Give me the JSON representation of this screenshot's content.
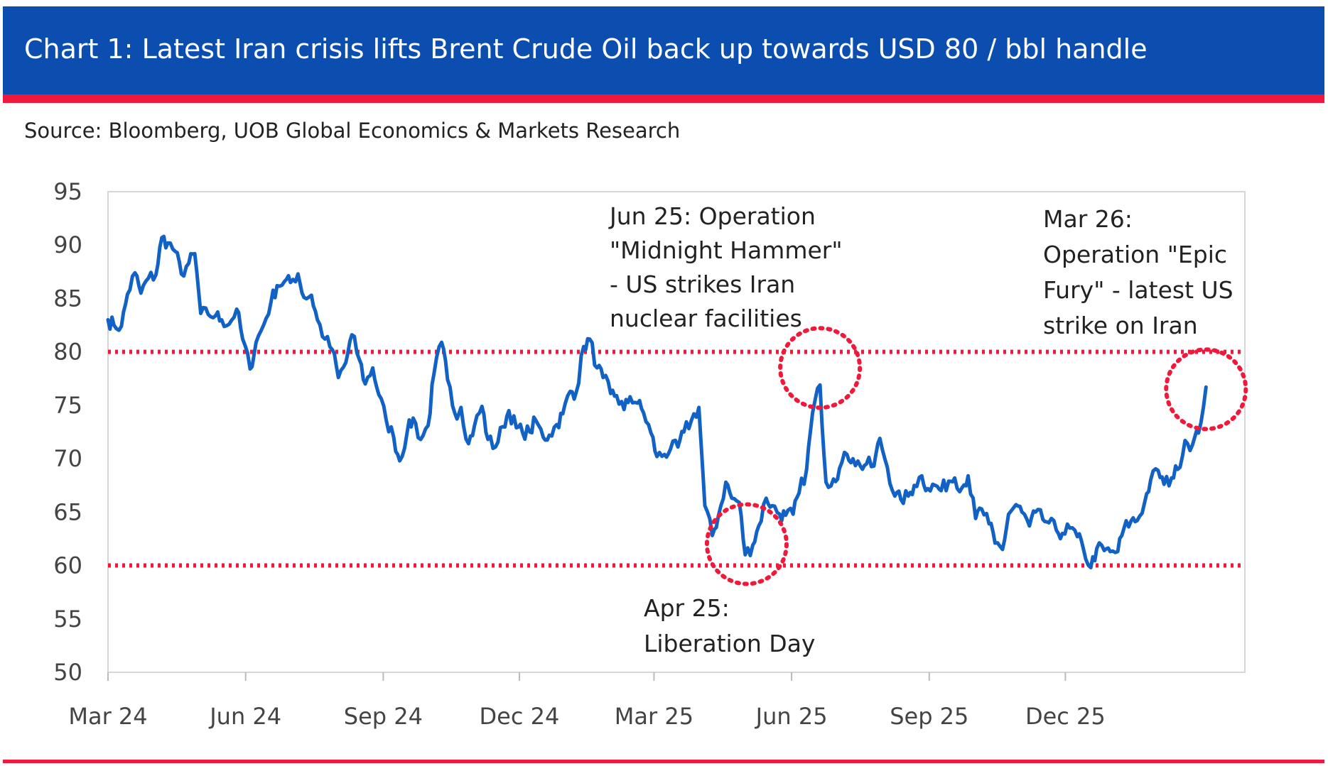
{
  "header": {
    "title": "Chart 1: Latest Iran crisis lifts Brent Crude Oil back up towards USD 80 / bbl handle",
    "source": "Source: Bloomberg, UOB Global Economics & Markets Research"
  },
  "colors": {
    "header_blue": "#0b4eaf",
    "accent_red": "#f0193c",
    "series_line": "#1162c4",
    "reference_lines": "#f0193c"
  },
  "chart_data": {
    "type": "line",
    "title": "Chart 1: Latest Iran crisis lifts Brent Crude Oil back up towards USD 80 / bbl handle",
    "xlabel": "",
    "ylabel": "",
    "ylim": [
      50,
      95
    ],
    "yticks": [
      95,
      90,
      85,
      80,
      75,
      70,
      65,
      60,
      55,
      50
    ],
    "xlim": [
      "2024-03-01",
      "2026-03-31"
    ],
    "xticks": [
      {
        "label": "Mar 24",
        "date": "2024-03-01"
      },
      {
        "label": "Jun 24",
        "date": "2024-06-01"
      },
      {
        "label": "Sep 24",
        "date": "2024-09-01"
      },
      {
        "label": "Dec 24",
        "date": "2024-12-01"
      },
      {
        "label": "Mar 25",
        "date": "2025-03-01"
      },
      {
        "label": "Jun 25",
        "date": "2025-06-01"
      },
      {
        "label": "Sep 25",
        "date": "2025-09-01"
      },
      {
        "label": "Dec 25",
        "date": "2025-12-01"
      }
    ],
    "grid": false,
    "legend": "none",
    "series": [
      {
        "points": [
          [
            "2024-03-01",
            83.0
          ],
          [
            "2024-03-05",
            82.5
          ],
          [
            "2024-03-10",
            82.4
          ],
          [
            "2024-03-14",
            85.4
          ],
          [
            "2024-03-19",
            87.4
          ],
          [
            "2024-03-23",
            85.5
          ],
          [
            "2024-03-28",
            86.9
          ],
          [
            "2024-04-02",
            87.2
          ],
          [
            "2024-04-06",
            90.7
          ],
          [
            "2024-04-10",
            90.2
          ],
          [
            "2024-04-15",
            89.4
          ],
          [
            "2024-04-19",
            87.3
          ],
          [
            "2024-04-24",
            88.3
          ],
          [
            "2024-04-28",
            89.2
          ],
          [
            "2024-05-02",
            83.6
          ],
          [
            "2024-05-07",
            83.5
          ],
          [
            "2024-05-12",
            83.4
          ],
          [
            "2024-05-16",
            83.0
          ],
          [
            "2024-05-21",
            82.6
          ],
          [
            "2024-05-26",
            84.0
          ],
          [
            "2024-05-30",
            81.2
          ],
          [
            "2024-06-04",
            78.4
          ],
          [
            "2024-06-08",
            80.9
          ],
          [
            "2024-06-13",
            82.5
          ],
          [
            "2024-06-18",
            84.7
          ],
          [
            "2024-06-22",
            86.2
          ],
          [
            "2024-06-27",
            86.6
          ],
          [
            "2024-07-01",
            86.5
          ],
          [
            "2024-07-06",
            87.3
          ],
          [
            "2024-07-10",
            85.1
          ],
          [
            "2024-07-15",
            85.3
          ],
          [
            "2024-07-19",
            83.0
          ],
          [
            "2024-07-24",
            81.2
          ],
          [
            "2024-07-29",
            80.2
          ],
          [
            "2024-08-02",
            77.6
          ],
          [
            "2024-08-07",
            79.0
          ],
          [
            "2024-08-11",
            81.6
          ],
          [
            "2024-08-16",
            79.3
          ],
          [
            "2024-08-20",
            77.0
          ],
          [
            "2024-08-25",
            78.5
          ],
          [
            "2024-08-29",
            76.0
          ],
          [
            "2024-09-03",
            73.6
          ],
          [
            "2024-09-08",
            72.0
          ],
          [
            "2024-09-12",
            69.8
          ],
          [
            "2024-09-17",
            72.5
          ],
          [
            "2024-09-21",
            73.8
          ],
          [
            "2024-09-26",
            71.8
          ],
          [
            "2024-10-01",
            73.1
          ],
          [
            "2024-10-05",
            78.0
          ],
          [
            "2024-10-10",
            80.9
          ],
          [
            "2024-10-14",
            77.4
          ],
          [
            "2024-10-19",
            74.2
          ],
          [
            "2024-10-23",
            74.8
          ],
          [
            "2024-10-28",
            71.4
          ],
          [
            "2024-11-01",
            73.1
          ],
          [
            "2024-11-06",
            74.9
          ],
          [
            "2024-11-10",
            71.8
          ],
          [
            "2024-11-15",
            71.1
          ],
          [
            "2024-11-20",
            73.0
          ],
          [
            "2024-11-24",
            74.5
          ],
          [
            "2024-11-29",
            72.9
          ],
          [
            "2024-12-03",
            72.5
          ],
          [
            "2024-12-08",
            72.5
          ],
          [
            "2024-12-12",
            73.6
          ],
          [
            "2024-12-17",
            72.0
          ],
          [
            "2024-12-21",
            72.2
          ],
          [
            "2024-12-26",
            73.2
          ],
          [
            "2024-12-30",
            74.2
          ],
          [
            "2025-01-04",
            76.3
          ],
          [
            "2025-01-08",
            76.2
          ],
          [
            "2025-01-13",
            80.5
          ],
          [
            "2025-01-17",
            81.2
          ],
          [
            "2025-01-22",
            78.5
          ],
          [
            "2025-01-26",
            77.6
          ],
          [
            "2025-01-31",
            76.1
          ],
          [
            "2025-02-04",
            75.9
          ],
          [
            "2025-02-09",
            74.6
          ],
          [
            "2025-02-13",
            75.8
          ],
          [
            "2025-02-18",
            75.2
          ],
          [
            "2025-02-22",
            74.3
          ],
          [
            "2025-02-27",
            72.4
          ],
          [
            "2025-03-03",
            70.2
          ],
          [
            "2025-03-08",
            70.4
          ],
          [
            "2025-03-12",
            70.9
          ],
          [
            "2025-03-17",
            71.1
          ],
          [
            "2025-03-21",
            72.5
          ],
          [
            "2025-03-26",
            73.6
          ],
          [
            "2025-03-31",
            74.8
          ],
          [
            "2025-04-04",
            65.6
          ],
          [
            "2025-04-09",
            62.8
          ],
          [
            "2025-04-13",
            64.6
          ],
          [
            "2025-04-18",
            67.8
          ],
          [
            "2025-04-22",
            66.3
          ],
          [
            "2025-04-27",
            65.9
          ],
          [
            "2025-05-01",
            61.0
          ],
          [
            "2025-05-06",
            61.9
          ],
          [
            "2025-05-10",
            63.7
          ],
          [
            "2025-05-15",
            66.3
          ],
          [
            "2025-05-19",
            65.6
          ],
          [
            "2025-05-24",
            64.8
          ],
          [
            "2025-05-28",
            64.7
          ],
          [
            "2025-06-02",
            64.8
          ],
          [
            "2025-06-06",
            66.8
          ],
          [
            "2025-06-11",
            69.0
          ],
          [
            "2025-06-15",
            74.3
          ],
          [
            "2025-06-20",
            76.9
          ],
          [
            "2025-06-24",
            67.8
          ],
          [
            "2025-06-29",
            68.1
          ],
          [
            "2025-07-03",
            69.1
          ],
          [
            "2025-07-08",
            70.4
          ],
          [
            "2025-07-12",
            70.0
          ],
          [
            "2025-07-17",
            69.3
          ],
          [
            "2025-07-21",
            69.5
          ],
          [
            "2025-07-26",
            69.3
          ],
          [
            "2025-07-30",
            71.9
          ],
          [
            "2025-08-04",
            69.2
          ],
          [
            "2025-08-09",
            66.5
          ],
          [
            "2025-08-13",
            66.2
          ],
          [
            "2025-08-18",
            66.5
          ],
          [
            "2025-08-22",
            67.5
          ],
          [
            "2025-08-27",
            68.4
          ],
          [
            "2025-08-31",
            67.2
          ],
          [
            "2025-09-05",
            67.5
          ],
          [
            "2025-09-09",
            67.0
          ],
          [
            "2025-09-14",
            67.9
          ],
          [
            "2025-09-18",
            68.2
          ],
          [
            "2025-09-23",
            67.3
          ],
          [
            "2025-09-27",
            68.4
          ],
          [
            "2025-10-02",
            64.4
          ],
          [
            "2025-10-06",
            65.3
          ],
          [
            "2025-10-11",
            63.9
          ],
          [
            "2025-10-15",
            62.1
          ],
          [
            "2025-10-20",
            61.5
          ],
          [
            "2025-10-24",
            64.8
          ],
          [
            "2025-10-29",
            65.7
          ],
          [
            "2025-11-02",
            65.0
          ],
          [
            "2025-11-07",
            63.7
          ],
          [
            "2025-11-11",
            65.0
          ],
          [
            "2025-11-16",
            64.3
          ],
          [
            "2025-11-20",
            64.0
          ],
          [
            "2025-11-25",
            63.3
          ],
          [
            "2025-11-29",
            63.0
          ],
          [
            "2025-12-04",
            63.5
          ],
          [
            "2025-12-09",
            62.7
          ],
          [
            "2025-12-13",
            61.6
          ],
          [
            "2025-12-18",
            59.8
          ],
          [
            "2025-12-22",
            61.6
          ],
          [
            "2025-12-27",
            61.4
          ],
          [
            "2025-12-31",
            61.3
          ],
          [
            "2026-01-05",
            61.3
          ],
          [
            "2026-01-09",
            63.4
          ],
          [
            "2026-01-14",
            64.2
          ],
          [
            "2026-01-18",
            64.2
          ],
          [
            "2026-01-23",
            65.9
          ],
          [
            "2026-01-27",
            68.0
          ],
          [
            "2026-02-01",
            68.9
          ],
          [
            "2026-02-05",
            67.6
          ],
          [
            "2026-02-10",
            68.2
          ],
          [
            "2026-02-14",
            69.0
          ],
          [
            "2026-02-19",
            71.7
          ],
          [
            "2026-02-24",
            71.3
          ],
          [
            "2026-02-28",
            72.4
          ],
          [
            "2026-03-05",
            76.7
          ]
        ]
      }
    ],
    "reference_lines": [
      {
        "y": 80,
        "style": "dotted"
      },
      {
        "y": 60,
        "style": "dotted"
      }
    ],
    "annotations": [
      {
        "text_lines": [
          "Jun 25: Operation",
          "\"Midnight Hammer\"",
          "- US strikes Iran",
          "nuclear facilities"
        ],
        "date": "2025-06-20",
        "value": 78.5
      },
      {
        "text_lines": [
          "Mar 26:",
          "Operation \"Epic",
          "Fury\" - latest US",
          "strike on Iran"
        ],
        "date": "2026-03-05",
        "value": 76.5
      },
      {
        "text_lines": [
          "Apr 25:",
          "Liberation Day"
        ],
        "date": "2025-05-02",
        "value": 62.0
      }
    ]
  }
}
